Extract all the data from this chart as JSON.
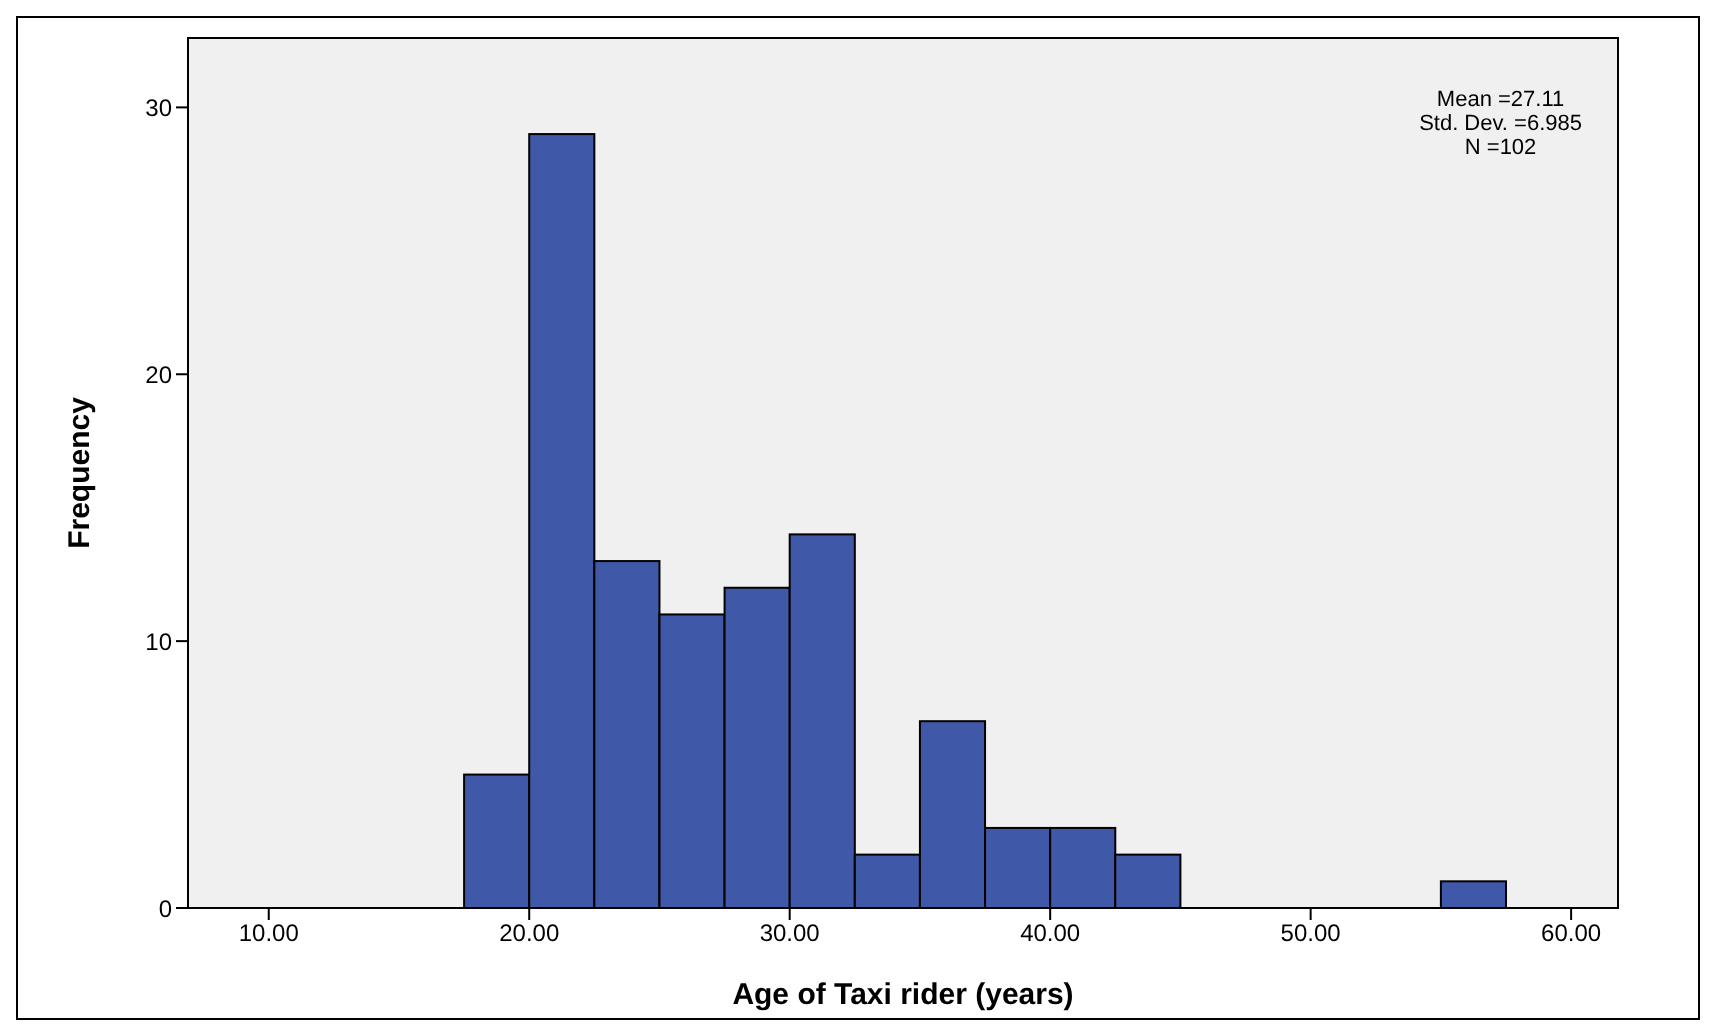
{
  "chart_data": {
    "type": "histogram",
    "xlabel": "Age of Taxi rider (years)",
    "ylabel": "Frequency",
    "bins": [
      17.5,
      20,
      22.5,
      25,
      27.5,
      30,
      32.5,
      35,
      37.5,
      40,
      42.5,
      45,
      47.5,
      50,
      52.5,
      55,
      57.5
    ],
    "values": [
      5,
      29,
      13,
      11,
      12,
      14,
      2,
      7,
      3,
      3,
      2,
      0,
      0,
      0,
      0,
      1
    ],
    "color": "#3f58a8",
    "xlim": [
      6.9,
      61.8
    ],
    "xticks": [
      {
        "value": 10,
        "label": "10.00"
      },
      {
        "value": 20,
        "label": "20.00"
      },
      {
        "value": 30,
        "label": "30.00"
      },
      {
        "value": 40,
        "label": "40.00"
      },
      {
        "value": 50,
        "label": "50.00"
      },
      {
        "value": 60,
        "label": "60.00"
      }
    ],
    "ylim": [
      0,
      32.6
    ],
    "yticks": [
      0,
      10,
      20,
      30
    ],
    "legend": false,
    "annotations": [
      "Mean =27.11",
      "Std. Dev. =6.985",
      "N =102"
    ]
  }
}
